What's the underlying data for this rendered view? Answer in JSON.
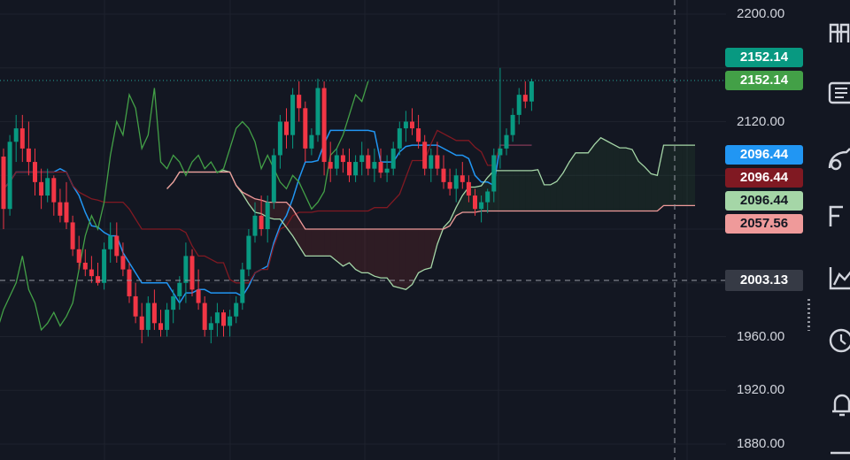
{
  "chart_data": {
    "type": "candlestick",
    "indicator": "ichimoku",
    "ylim": [
      1870,
      2215
    ],
    "y_ticks": [
      "2200.00",
      "2120.00",
      "1960.00",
      "1920.00",
      "1880.00"
    ],
    "crosshair_price": "2003.13",
    "price_tags": [
      {
        "value": "2152.14",
        "color": "#089981"
      },
      {
        "value": "2152.14",
        "color": "#43a047"
      },
      {
        "value": "2096.44",
        "color": "#2196f3"
      },
      {
        "value": "2096.44",
        "color": "#801922"
      },
      {
        "value": "2096.44",
        "color": "#a5d6a7",
        "text_color": "#131722"
      },
      {
        "value": "2057.56",
        "color": "#ef9a9a",
        "text_color": "#131722"
      }
    ],
    "candles": [
      [
        2094,
        2100,
        2040,
        2055
      ],
      [
        2055,
        2110,
        2050,
        2105
      ],
      [
        2105,
        2125,
        2090,
        2115
      ],
      [
        2115,
        2125,
        2090,
        2100
      ],
      [
        2100,
        2120,
        2080,
        2090
      ],
      [
        2090,
        2100,
        2065,
        2075
      ],
      [
        2075,
        2085,
        2055,
        2065
      ],
      [
        2065,
        2085,
        2060,
        2078
      ],
      [
        2078,
        2080,
        2050,
        2060
      ],
      [
        2060,
        2070,
        2045,
        2050
      ],
      [
        2060,
        2075,
        2040,
        2045
      ],
      [
        2045,
        2050,
        2020,
        2025
      ],
      [
        2025,
        2035,
        2010,
        2015
      ],
      [
        2015,
        2025,
        2005,
        2010
      ],
      [
        2010,
        2020,
        2000,
        2005
      ],
      [
        2005,
        2015,
        1998,
        2000
      ],
      [
        2000,
        2030,
        1995,
        2025
      ],
      [
        2025,
        2045,
        2015,
        2035
      ],
      [
        2035,
        2045,
        2015,
        2020
      ],
      [
        2020,
        2030,
        2005,
        2010
      ],
      [
        2010,
        2015,
        1985,
        1990
      ],
      [
        1990,
        2000,
        1970,
        1975
      ],
      [
        1975,
        1985,
        1955,
        1965
      ],
      [
        1965,
        1990,
        1960,
        1985
      ],
      [
        1985,
        1995,
        1965,
        1970
      ],
      [
        1970,
        1980,
        1960,
        1965
      ],
      [
        1965,
        1985,
        1960,
        1980
      ],
      [
        1980,
        1995,
        1970,
        1990
      ],
      [
        1990,
        2005,
        1980,
        2000
      ],
      [
        2000,
        2030,
        1985,
        2020
      ],
      [
        2020,
        2025,
        1990,
        1995
      ],
      [
        1995,
        2010,
        1980,
        1985
      ],
      [
        1985,
        1990,
        1960,
        1965
      ],
      [
        1965,
        1975,
        1955,
        1970
      ],
      [
        1970,
        1985,
        1960,
        1978
      ],
      [
        1978,
        1980,
        1960,
        1968
      ],
      [
        1968,
        1980,
        1960,
        1975
      ],
      [
        1975,
        1990,
        1970,
        1985
      ],
      [
        1985,
        2015,
        1980,
        2010
      ],
      [
        2010,
        2040,
        2005,
        2035
      ],
      [
        2035,
        2060,
        2030,
        2050
      ],
      [
        2050,
        2065,
        2035,
        2040
      ],
      [
        2040,
        2065,
        2030,
        2060
      ],
      [
        2060,
        2100,
        2055,
        2095
      ],
      [
        2095,
        2125,
        2085,
        2120
      ],
      [
        2120,
        2130,
        2100,
        2110
      ],
      [
        2110,
        2145,
        2100,
        2140
      ],
      [
        2140,
        2150,
        2120,
        2130
      ],
      [
        2130,
        2135,
        2090,
        2100
      ],
      [
        2100,
        2115,
        2095,
        2110
      ],
      [
        2110,
        2152,
        2105,
        2145
      ],
      [
        2145,
        2150,
        2080,
        2090
      ],
      [
        2090,
        2105,
        2075,
        2085
      ],
      [
        2085,
        2100,
        2080,
        2095
      ],
      [
        2095,
        2100,
        2082,
        2090
      ],
      [
        2090,
        2100,
        2075,
        2080
      ],
      [
        2080,
        2095,
        2075,
        2090
      ],
      [
        2090,
        2105,
        2080,
        2095
      ],
      [
        2095,
        2100,
        2080,
        2085
      ],
      [
        2085,
        2100,
        2075,
        2090
      ],
      [
        2090,
        2100,
        2078,
        2082
      ],
      [
        2082,
        2095,
        2075,
        2085
      ],
      [
        2085,
        2105,
        2080,
        2100
      ],
      [
        2100,
        2120,
        2095,
        2115
      ],
      [
        2115,
        2128,
        2105,
        2120
      ],
      [
        2120,
        2130,
        2110,
        2115
      ],
      [
        2115,
        2125,
        2100,
        2105
      ],
      [
        2105,
        2110,
        2080,
        2085
      ],
      [
        2085,
        2100,
        2075,
        2095
      ],
      [
        2095,
        2105,
        2080,
        2085
      ],
      [
        2085,
        2095,
        2070,
        2075
      ],
      [
        2075,
        2085,
        2065,
        2070
      ],
      [
        2070,
        2085,
        2060,
        2080
      ],
      [
        2080,
        2090,
        2070,
        2075
      ],
      [
        2075,
        2080,
        2060,
        2065
      ],
      [
        2065,
        2070,
        2050,
        2055
      ],
      [
        2055,
        2065,
        2045,
        2060
      ],
      [
        2060,
        2070,
        2052,
        2068
      ],
      [
        2068,
        2100,
        2060,
        2095
      ],
      [
        2095,
        2160,
        2085,
        2100
      ],
      [
        2100,
        2115,
        2095,
        2110
      ],
      [
        2110,
        2130,
        2105,
        2125
      ],
      [
        2125,
        2145,
        2118,
        2140
      ],
      [
        2140,
        2150,
        2130,
        2135
      ],
      [
        2135,
        2152,
        2128,
        2150
      ]
    ]
  },
  "toolbar": {
    "icons": [
      "binoculars-icon",
      "newspaper-icon",
      "ideas-icon",
      "calendar-icon",
      "chart-line-icon",
      "clock-icon",
      "bell-icon",
      "menu-icon"
    ]
  }
}
